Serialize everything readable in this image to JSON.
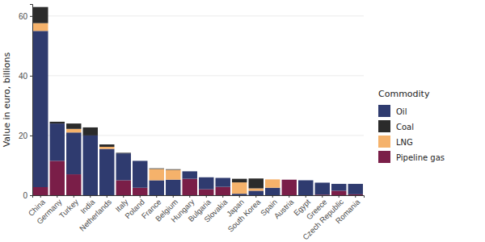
{
  "chart_data": {
    "type": "bar",
    "stacked": true,
    "grid": true,
    "legend": "right",
    "y_label": "Value in euro, billions",
    "legend_title": "Commodity",
    "categories": [
      "China",
      "Germany",
      "Turkey",
      "India",
      "Netherlands",
      "Italy",
      "Poland",
      "France",
      "Belgium",
      "Hungary",
      "Bulgaria",
      "Slovakia",
      "Japan",
      "South Korea",
      "Spain",
      "Austria",
      "Egypt",
      "Greece",
      "Czech Republic",
      "Romania"
    ],
    "series": [
      {
        "name": "Oil",
        "color": "#2f3b6f",
        "values": [
          52.3,
          12.5,
          14,
          20,
          15.5,
          9,
          9,
          5,
          5.2,
          2.5,
          4,
          3,
          0.5,
          1.5,
          2.5,
          0,
          5,
          4,
          2.3,
          3.5
        ]
      },
      {
        "name": "Coal",
        "color": "#2b2b2b",
        "values": [
          5.4,
          0.6,
          1.8,
          2.7,
          0.8,
          0.2,
          0,
          0.2,
          0.2,
          0,
          0,
          0,
          1.2,
          3.3,
          0,
          0,
          0,
          0,
          0,
          0
        ]
      },
      {
        "name": "LNG",
        "color": "#f5b26b",
        "values": [
          2.6,
          0,
          1.2,
          0,
          0.7,
          0,
          0,
          3.8,
          3.3,
          0,
          0,
          0,
          3.8,
          0.8,
          2.8,
          0,
          0,
          0,
          0,
          0
        ]
      },
      {
        "name": "Pipeline gas",
        "color": "#7a1e48",
        "values": [
          2.7,
          11.5,
          7,
          0,
          0,
          5,
          2.5,
          0,
          0,
          5.5,
          2,
          2.8,
          0,
          0,
          0,
          5.2,
          0,
          0.2,
          1.5,
          0.3
        ]
      }
    ],
    "ylim": [
      0,
      64
    ],
    "yticks": [
      0,
      20,
      40,
      60
    ]
  }
}
